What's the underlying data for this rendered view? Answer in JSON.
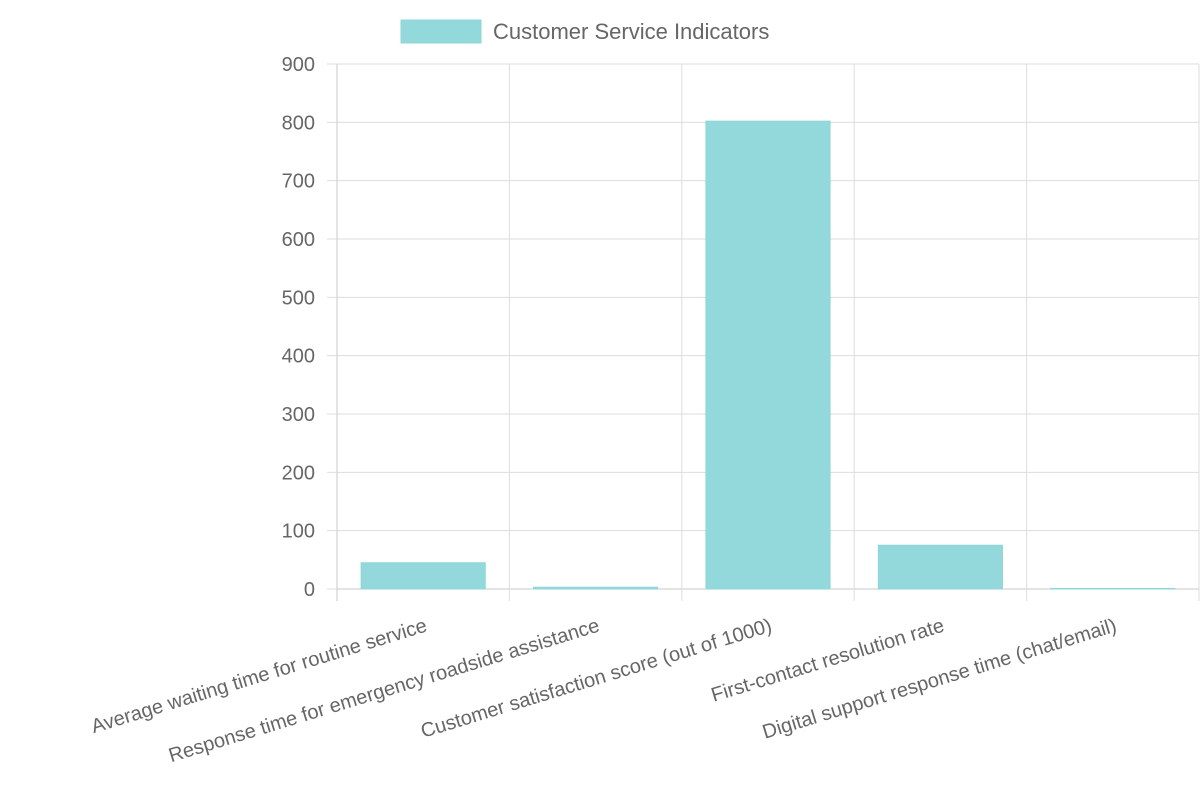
{
  "chart_data": {
    "type": "bar",
    "categories": [
      "Average waiting time for routine service",
      "Response time for emergency roadside assistance",
      "Customer satisfaction score (out of 1000)",
      "First-contact resolution rate",
      "Digital support response time (chat/email)"
    ],
    "series": [
      {
        "name": "Customer Service Indicators",
        "values": [
          45,
          3,
          802,
          75,
          1
        ]
      }
    ],
    "ylim": [
      0,
      900
    ],
    "yticks": [
      0,
      100,
      200,
      300,
      400,
      500,
      600,
      700,
      800,
      900
    ],
    "grid": true,
    "legend_position": "top",
    "colors": {
      "bar_fill": "#93d8da",
      "bar_stroke": "#8fd6d8",
      "grid": "#dddddd",
      "axis": "#c8c8c8",
      "text": "#666666"
    }
  }
}
